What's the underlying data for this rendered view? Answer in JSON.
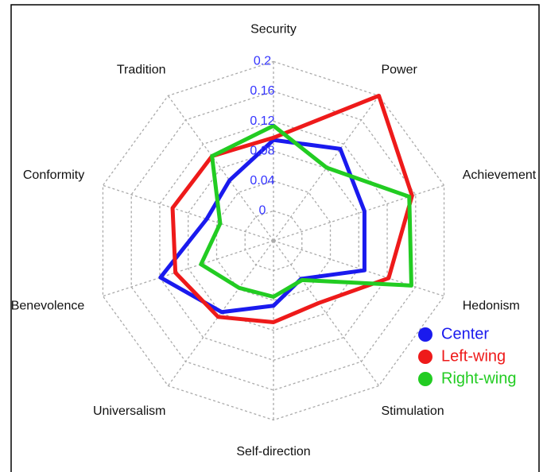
{
  "chart_data": {
    "type": "radar",
    "categories": [
      "Security",
      "Power",
      "Achievement",
      "Hedonism",
      "Stimulation",
      "Self-direction",
      "Universalism",
      "Benevolence",
      "Conformity",
      "Tradition"
    ],
    "rlim": [
      -0.04,
      0.2
    ],
    "rticks": [
      0,
      0.04,
      0.08,
      0.12,
      0.16,
      0.2
    ],
    "grid": true,
    "legend": "bottom-right",
    "series": [
      {
        "name": "Center",
        "color": "#1a1aee",
        "values": [
          0.095,
          0.112,
          0.088,
          0.088,
          0.023,
          0.047,
          0.078,
          0.119,
          0.054,
          0.06
        ]
      },
      {
        "name": "Left-wing",
        "color": "#ee1a1a",
        "values": [
          0.098,
          0.2,
          0.155,
          0.122,
          0.063,
          0.069,
          0.086,
          0.098,
          0.102,
          0.1
        ]
      },
      {
        "name": "Right-wing",
        "color": "#22cc22",
        "values": [
          0.114,
          0.081,
          0.151,
          0.154,
          0.025,
          0.035,
          0.038,
          0.062,
          0.035,
          0.1
        ]
      }
    ]
  }
}
